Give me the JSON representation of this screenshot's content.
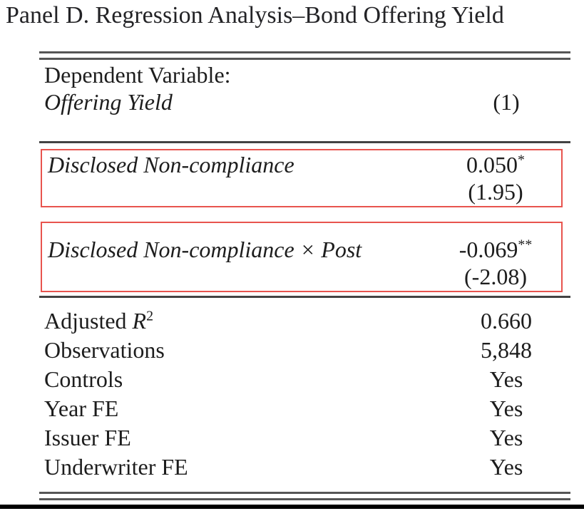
{
  "panel_title": "Panel D. Regression Analysis–Bond Offering Yield",
  "table": {
    "header": {
      "dependent_variable_label": "Dependent Variable:",
      "dependent_variable_name": "Offering Yield",
      "column_number": "(1)"
    },
    "coefficients": [
      {
        "variable": "Disclosed Non-compliance",
        "estimate": "0.050",
        "significance_stars": "*",
        "t_statistic": "(1.95)",
        "highlighted": true
      },
      {
        "variable": "Disclosed Non-compliance × Post",
        "estimate": "-0.069",
        "significance_stars": "**",
        "t_statistic": "(-2.08)",
        "highlighted": true
      }
    ],
    "statistics": [
      {
        "label": "Adjusted ",
        "math": "R",
        "sup": "2",
        "value": "0.660"
      },
      {
        "label": "Observations",
        "value": "5,848"
      },
      {
        "label": "Controls",
        "value": "Yes"
      },
      {
        "label": "Year FE",
        "value": "Yes"
      },
      {
        "label": "Issuer FE",
        "value": "Yes"
      },
      {
        "label": "Underwriter FE",
        "value": "Yes"
      }
    ]
  },
  "colors": {
    "highlight_box": "#e8544e",
    "rule": "#434343",
    "double_rule": "#565656",
    "text": "#1d1d1d",
    "bottom_frame": "#000000"
  }
}
